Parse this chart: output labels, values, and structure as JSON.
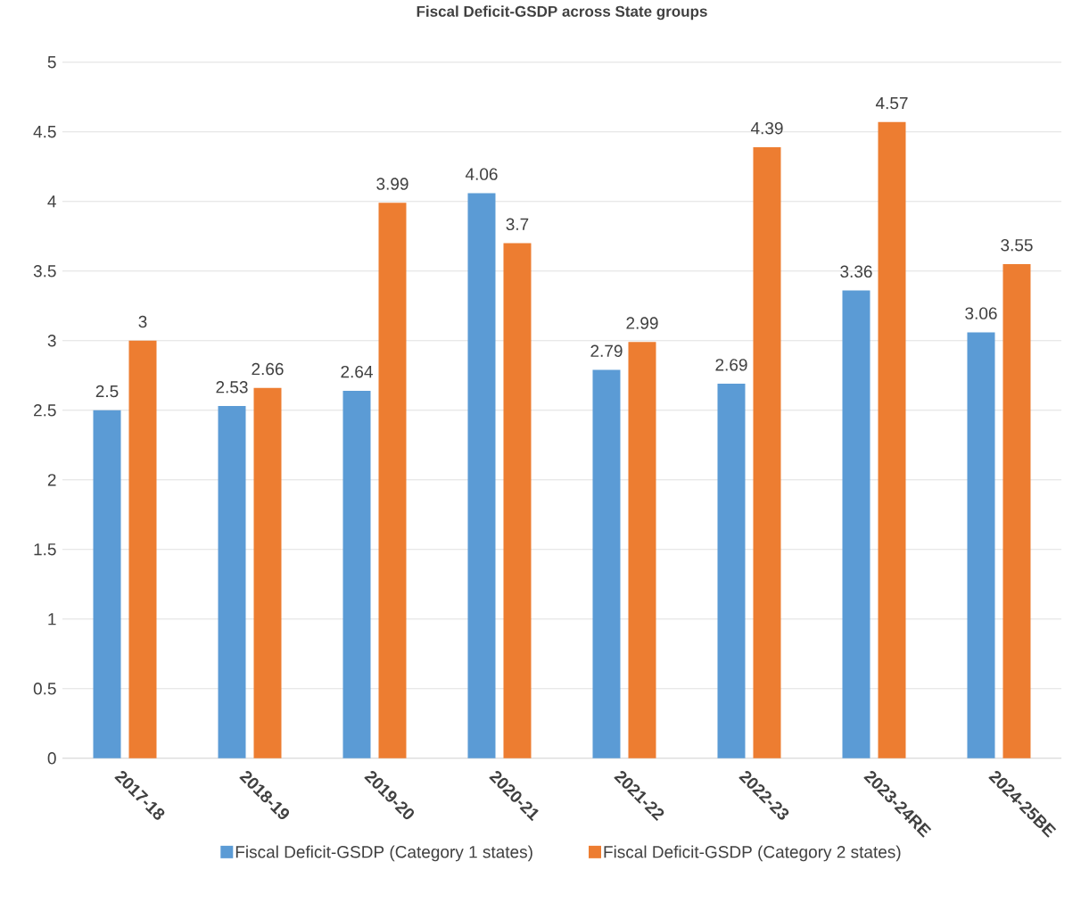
{
  "chart_data": {
    "type": "bar",
    "title": "Fiscal Deficit-GSDP across State groups",
    "categories": [
      "2017-18",
      "2018-19",
      "2019-20",
      "2020-21",
      "2021-22",
      "2022-23",
      "2023-24RE",
      "2024-25BE"
    ],
    "series": [
      {
        "name": "Fiscal Deficit-GSDP (Category 1 states)",
        "color": "#5b9bd5",
        "values": [
          2.5,
          2.53,
          2.64,
          4.06,
          2.79,
          2.69,
          3.36,
          3.06
        ]
      },
      {
        "name": "Fiscal Deficit-GSDP (Category 2 states)",
        "color": "#ed7d31",
        "values": [
          3,
          2.66,
          3.99,
          3.7,
          2.99,
          4.39,
          4.57,
          3.55
        ]
      }
    ],
    "ylim": [
      0,
      5
    ],
    "yticks": [
      0,
      0.5,
      1,
      1.5,
      2,
      2.5,
      3,
      3.5,
      4,
      4.5,
      5
    ],
    "grid": "y",
    "legend": "bottom",
    "data_labels": true
  }
}
